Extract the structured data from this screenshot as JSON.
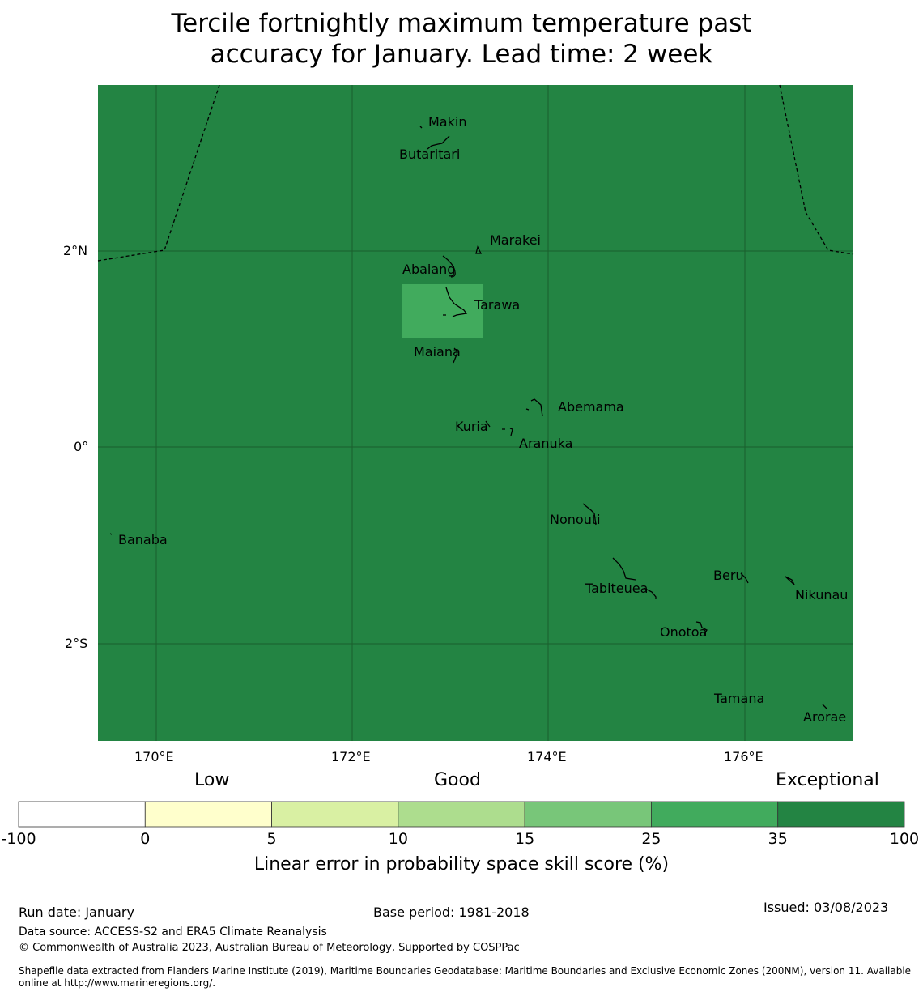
{
  "title_line1": "Tercile fortnightly maximum temperature past",
  "title_line2": "accuracy for January. Lead time: 2 week",
  "map": {
    "background_color": "#238443",
    "lon_ticks": [
      "170°E",
      "172°E",
      "174°E",
      "176°E"
    ],
    "lat_ticks": [
      "2°N",
      "0°",
      "2°S"
    ],
    "islands": [
      "Makin",
      "Butaritari",
      "Marakei",
      "Abaiang",
      "Tarawa",
      "Maiana",
      "Abemama",
      "Kuria",
      "Aranuka",
      "Nonouti",
      "Banaba",
      "Tabiteuea",
      "Beru",
      "Nikunau",
      "Onotoa",
      "Tamana",
      "Arorae"
    ],
    "highlight_cell": {
      "near": "Tarawa",
      "category": "25-35",
      "color": "#41ab5d"
    }
  },
  "colorbar": {
    "category_labels": [
      "Low",
      "Good",
      "Exceptional"
    ],
    "ticks": [
      "-100",
      "0",
      "5",
      "10",
      "15",
      "25",
      "35",
      "100"
    ],
    "colors": [
      "#ffffff",
      "#ffffcc",
      "#d9f0a3",
      "#addd8e",
      "#78c679",
      "#41ab5d",
      "#238443"
    ],
    "label": "Linear error in probability space skill score (%)"
  },
  "footer": {
    "run_date": "Run date: January",
    "base_period": "Base period: 1981-2018",
    "issued": "Issued: 03/08/2023",
    "data_source": "Data source: ACCESS-S2 and ERA5 Climate Reanalysis",
    "copyright": "© Commonwealth of Australia 2023, Australian Bureau of Meteorology, Supported by COSPPac",
    "shapefile_line1": "Shapefile data extracted from Flanders Marine Institute (2019), Maritime Boundaries Geodatabase: Maritime Boundaries and Exclusive Economic Zones (200NM), version 11. Available",
    "shapefile_line2": "online at http://www.marineregions.org/."
  }
}
